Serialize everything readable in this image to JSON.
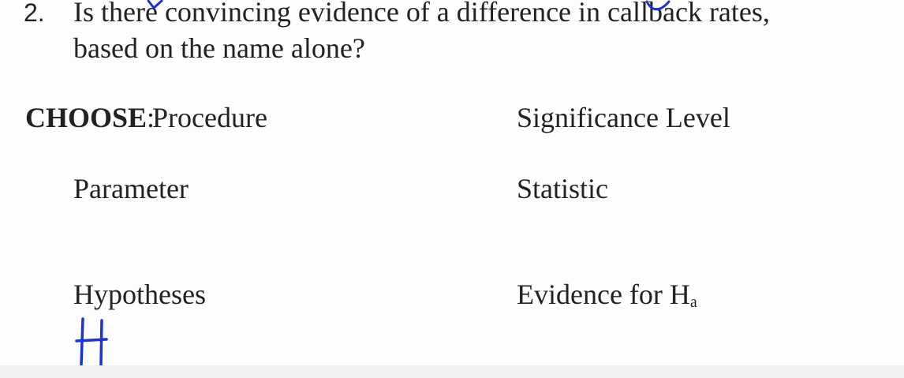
{
  "question": {
    "number": "2.",
    "line1": "Is there convincing evidence of a difference in callback rates,",
    "line2": "based on the name alone?"
  },
  "choose": {
    "key": "CHOOSE",
    "separator": ":",
    "procedure": "Procedure",
    "significance_level": "Significance Level"
  },
  "parameter": "Parameter",
  "statistic": "Statistic",
  "hypotheses": "Hypotheses",
  "evidence": {
    "prefix": "Evidence for H",
    "subscript": "a"
  },
  "handwriting": {
    "letter": "H",
    "ink_color": "#1a33d6"
  }
}
